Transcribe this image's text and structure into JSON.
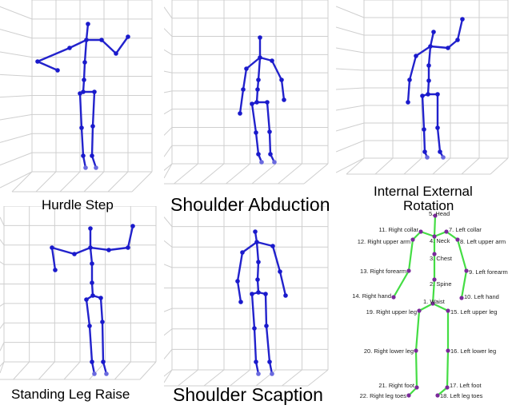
{
  "captions": {
    "p1": "Hurdle Step",
    "p2": "Shoulder Abduction",
    "p3_line1": "Internal External",
    "p3_line2": "Rotation",
    "p4": "Standing Leg Raise",
    "p5": "Shoulder  Scaption"
  },
  "legend": {
    "labels": [
      "5. Head",
      "11. Right collar",
      "7. Left collar",
      "4. Neck",
      "12. Right upper arm",
      "8. Left upper arm",
      "3. Chest",
      "13. Right forearm",
      "9. Left forearm",
      "2. Spine",
      "14. Right hand",
      "10. Left hand",
      "1. Waist",
      "19. Right upper leg",
      "15. Left upper leg",
      "20. Right lower leg",
      "16. Left lower leg",
      "21. Right foot",
      "17. Left foot",
      "22. Right leg toes",
      "18. Left leg toes"
    ]
  },
  "colors": {
    "skeleton": "#2222cc",
    "legend_bone": "#44dd44",
    "legend_joint": "#7a2a9a",
    "grid": "#cfcfcf"
  }
}
